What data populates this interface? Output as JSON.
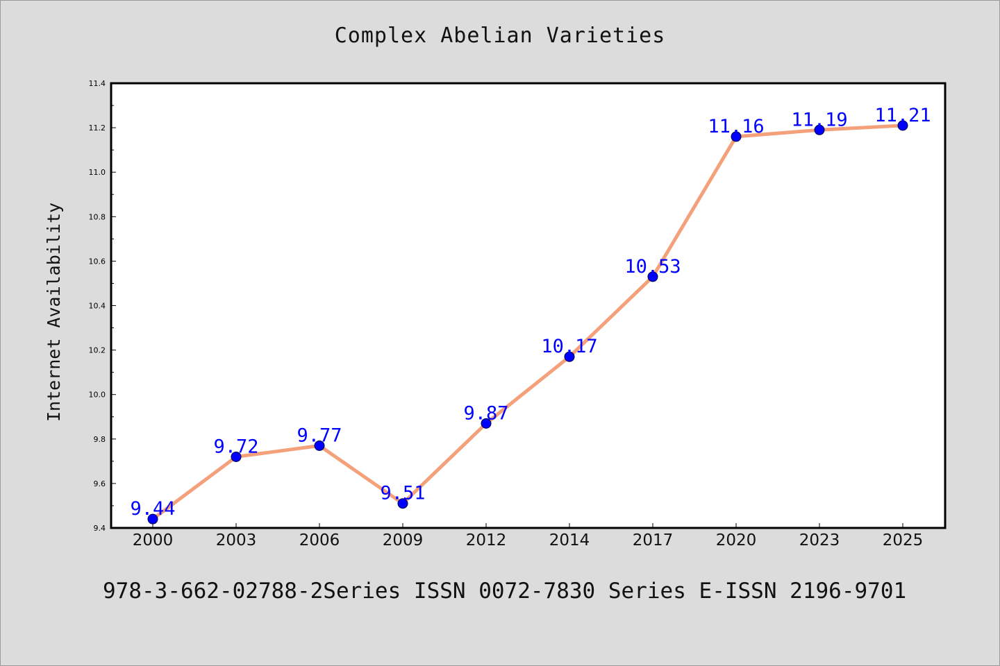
{
  "chart_data": {
    "type": "line",
    "title": "Complex Abelian Varieties",
    "xlabel": "",
    "ylabel": "Internet Availability",
    "categories": [
      "2000",
      "2003",
      "2006",
      "2009",
      "2012",
      "2014",
      "2017",
      "2020",
      "2023",
      "2025"
    ],
    "series": [
      {
        "values": [
          9.44,
          9.72,
          9.77,
          9.51,
          9.87,
          10.17,
          10.53,
          11.16,
          11.19,
          11.21
        ],
        "labels": [
          "9.44",
          "9.72",
          "9.77",
          "9.51",
          "9.87",
          "10.17",
          "10.53",
          "11.16",
          "11.19",
          "11.21"
        ],
        "line_color": "#f4a07a",
        "marker_color": "#0000ff"
      }
    ],
    "ylim": [
      9.4,
      11.4
    ],
    "yticks": [
      "9.4",
      "9.6",
      "9.8",
      "10.0",
      "10.2",
      "10.4",
      "10.6",
      "10.8",
      "11.0",
      "11.2",
      "11.4"
    ],
    "grid": false,
    "legend": "none"
  },
  "footer": {
    "text": "978-3-662-02788-2Series ISSN 0072-7830 Series E-ISSN 2196-9701"
  }
}
